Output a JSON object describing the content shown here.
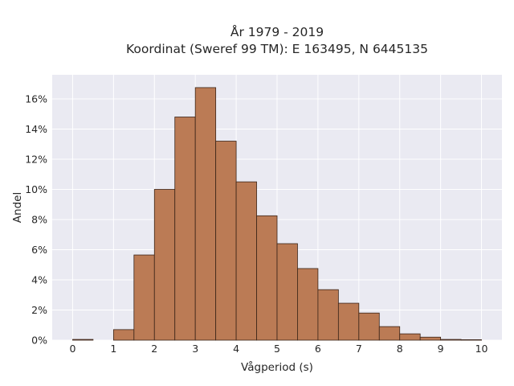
{
  "chart_data": {
    "type": "bar",
    "title_line1": "År 1979 - 2019",
    "title_line2": "Koordinat (Sweref 99 TM): E 163495, N 6445135",
    "xlabel": "Vågperiod (s)",
    "ylabel": "Andel",
    "xlim": [
      -0.5,
      10.5
    ],
    "ylim": [
      0,
      17.6
    ],
    "x_ticks": [
      0,
      1,
      2,
      3,
      4,
      5,
      6,
      7,
      8,
      9,
      10
    ],
    "y_ticks": [
      {
        "value": 0,
        "label": "0%"
      },
      {
        "value": 2,
        "label": "2%"
      },
      {
        "value": 4,
        "label": "4%"
      },
      {
        "value": 6,
        "label": "6%"
      },
      {
        "value": 8,
        "label": "8%"
      },
      {
        "value": 10,
        "label": "10%"
      },
      {
        "value": 12,
        "label": "12%"
      },
      {
        "value": 14,
        "label": "14%"
      },
      {
        "value": 16,
        "label": "16%"
      }
    ],
    "bin_width": 0.5,
    "bin_starts": [
      0,
      0.5,
      1,
      1.5,
      2,
      2.5,
      3,
      3.5,
      4,
      4.5,
      5,
      5.5,
      6,
      6.5,
      7,
      7.5,
      8,
      8.5,
      9,
      9.5
    ],
    "values": [
      0.05,
      0.0,
      0.7,
      5.65,
      10.0,
      14.8,
      16.75,
      13.2,
      10.5,
      8.25,
      6.4,
      4.75,
      3.35,
      2.45,
      1.8,
      0.9,
      0.42,
      0.2,
      0.05,
      0.03
    ],
    "colors": {
      "bar": "#bb7b55",
      "bar_edge": "#3a2418",
      "plot_bg": "#eaeaf2",
      "grid": "#ffffff"
    },
    "grid": true,
    "legend": "none"
  }
}
